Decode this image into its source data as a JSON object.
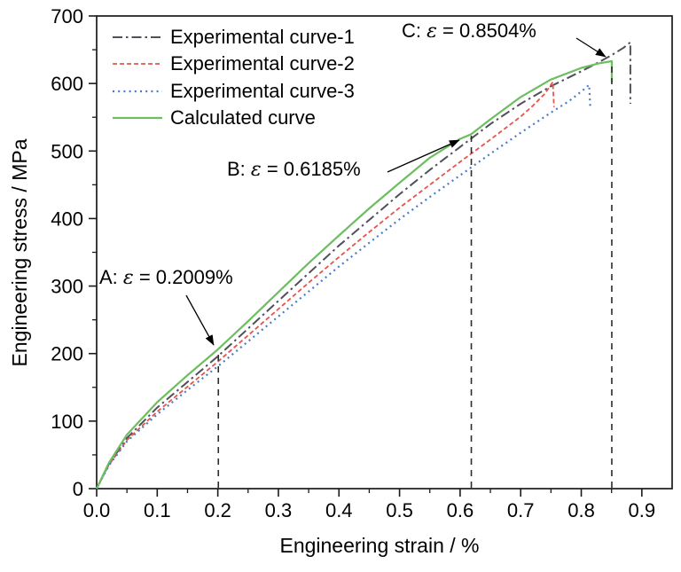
{
  "figure": {
    "x_axis": {
      "label": "Engineering strain / %",
      "tick_labels": [
        "0.0",
        "0.1",
        "0.2",
        "0.3",
        "0.4",
        "0.5",
        "0.6",
        "0.7",
        "0.8",
        "0.9"
      ],
      "tick_values": [
        0,
        0.1,
        0.2,
        0.3,
        0.4,
        0.5,
        0.6,
        0.7,
        0.8,
        0.9
      ],
      "minor_tick_values": [
        0.05,
        0.15,
        0.25,
        0.35,
        0.45,
        0.55,
        0.65,
        0.75,
        0.85
      ],
      "min": 0,
      "max": 0.95
    },
    "y_axis": {
      "label": "Engineering stress / MPa",
      "tick_labels": [
        "0",
        "100",
        "200",
        "300",
        "400",
        "500",
        "600",
        "700"
      ],
      "tick_values": [
        0,
        100,
        200,
        300,
        400,
        500,
        600,
        700
      ],
      "minor_tick_values": [
        50,
        150,
        250,
        350,
        450,
        550,
        650
      ],
      "min": 0,
      "max": 700
    }
  },
  "legend": {
    "items": [
      {
        "label": "Experimental curve-1",
        "color": "#50505a",
        "dasharray": "11 4 2.5 4",
        "width": 2
      },
      {
        "label": "Experimental curve-2",
        "color": "#e6554b",
        "dasharray": "5 3",
        "width": 1.8
      },
      {
        "label": "Experimental curve-3",
        "color": "#4a79c6",
        "dasharray": "2 4.2",
        "width": 2.2
      },
      {
        "label": "Calculated curve",
        "color": "#6cbe5f",
        "dasharray": "",
        "width": 2.2
      }
    ]
  },
  "annotations": [
    {
      "id": "A",
      "prefix": "A: ",
      "symbol": "ε",
      "suffix": " = 0.2009%",
      "strain_percent": 0.2009,
      "stress_mpa": 206
    },
    {
      "id": "B",
      "prefix": "B: ",
      "symbol": "ε",
      "suffix": " = 0.6185%",
      "strain_percent": 0.6185,
      "stress_mpa": 525
    },
    {
      "id": "C",
      "prefix": "C: ",
      "symbol": "ε",
      "suffix": " = 0.8504%",
      "strain_percent": 0.8504,
      "stress_mpa": 633
    }
  ],
  "chart_data": {
    "type": "line",
    "title": "",
    "xlabel": "Engineering strain / %",
    "ylabel": "Engineering stress / MPa",
    "xlim": [
      0,
      0.95
    ],
    "ylim": [
      0,
      700
    ],
    "grid": false,
    "legend_position": "upper-left",
    "series": [
      {
        "name": "Experimental curve-1",
        "style": "dashdot",
        "color": "#50505a",
        "dasharray": "11 4 2.5 4",
        "width": 2,
        "points": [
          [
            0,
            0
          ],
          [
            0.02,
            36
          ],
          [
            0.05,
            75
          ],
          [
            0.1,
            120
          ],
          [
            0.15,
            158
          ],
          [
            0.2,
            196
          ],
          [
            0.25,
            237
          ],
          [
            0.3,
            278
          ],
          [
            0.35,
            319
          ],
          [
            0.4,
            360
          ],
          [
            0.45,
            398
          ],
          [
            0.5,
            436
          ],
          [
            0.55,
            472
          ],
          [
            0.6,
            506
          ],
          [
            0.65,
            540
          ],
          [
            0.7,
            570
          ],
          [
            0.75,
            596
          ],
          [
            0.8,
            618
          ],
          [
            0.83,
            632
          ],
          [
            0.85,
            642
          ],
          [
            0.87,
            653
          ],
          [
            0.881,
            661
          ],
          [
            0.881,
            570
          ]
        ]
      },
      {
        "name": "Experimental curve-2",
        "style": "dashed",
        "color": "#e6554b",
        "dasharray": "5 3",
        "width": 1.8,
        "points": [
          [
            0,
            0
          ],
          [
            0.02,
            35
          ],
          [
            0.05,
            72
          ],
          [
            0.1,
            114
          ],
          [
            0.15,
            151
          ],
          [
            0.2,
            188
          ],
          [
            0.25,
            227
          ],
          [
            0.3,
            266
          ],
          [
            0.35,
            305
          ],
          [
            0.4,
            343
          ],
          [
            0.45,
            380
          ],
          [
            0.5,
            416
          ],
          [
            0.55,
            450
          ],
          [
            0.6,
            484
          ],
          [
            0.65,
            517
          ],
          [
            0.7,
            551
          ],
          [
            0.72,
            567
          ],
          [
            0.74,
            585
          ],
          [
            0.753,
            602
          ],
          [
            0.755,
            565
          ]
        ]
      },
      {
        "name": "Experimental curve-3",
        "style": "dotted",
        "color": "#4a79c6",
        "dasharray": "2 4.2",
        "width": 2.2,
        "points": [
          [
            0,
            0
          ],
          [
            0.02,
            34
          ],
          [
            0.05,
            70
          ],
          [
            0.1,
            110
          ],
          [
            0.15,
            146
          ],
          [
            0.2,
            181
          ],
          [
            0.25,
            218
          ],
          [
            0.3,
            255
          ],
          [
            0.35,
            292
          ],
          [
            0.4,
            329
          ],
          [
            0.45,
            364
          ],
          [
            0.5,
            399
          ],
          [
            0.55,
            432
          ],
          [
            0.6,
            464
          ],
          [
            0.65,
            496
          ],
          [
            0.7,
            527
          ],
          [
            0.75,
            557
          ],
          [
            0.78,
            574
          ],
          [
            0.8,
            588
          ],
          [
            0.813,
            598
          ],
          [
            0.815,
            562
          ]
        ]
      },
      {
        "name": "Calculated curve",
        "style": "solid",
        "color": "#6cbe5f",
        "dasharray": "",
        "width": 2.2,
        "points": [
          [
            0,
            0
          ],
          [
            0.02,
            38
          ],
          [
            0.05,
            80
          ],
          [
            0.1,
            128
          ],
          [
            0.15,
            168
          ],
          [
            0.2,
            206
          ],
          [
            0.25,
            248
          ],
          [
            0.3,
            291
          ],
          [
            0.35,
            334
          ],
          [
            0.4,
            375
          ],
          [
            0.45,
            415
          ],
          [
            0.5,
            453
          ],
          [
            0.55,
            490
          ],
          [
            0.6,
            518
          ],
          [
            0.6185,
            525
          ],
          [
            0.65,
            547
          ],
          [
            0.7,
            580
          ],
          [
            0.75,
            606
          ],
          [
            0.8,
            623
          ],
          [
            0.83,
            630
          ],
          [
            0.8504,
            633
          ],
          [
            0.8504,
            601
          ]
        ]
      }
    ],
    "guide_lines": [
      {
        "x": 0.2009,
        "y_top": 206,
        "style": "black-dashed"
      },
      {
        "x": 0.6185,
        "y_top": 525,
        "style": "black-dashed"
      },
      {
        "x": 0.8504,
        "y_top": 633,
        "style": "black-dashed"
      }
    ],
    "annotated_points": [
      {
        "label": "A",
        "strain_percent": 0.2009,
        "stress_mpa": 206
      },
      {
        "label": "B",
        "strain_percent": 0.6185,
        "stress_mpa": 525
      },
      {
        "label": "C",
        "strain_percent": 0.8504,
        "stress_mpa": 633
      }
    ]
  }
}
